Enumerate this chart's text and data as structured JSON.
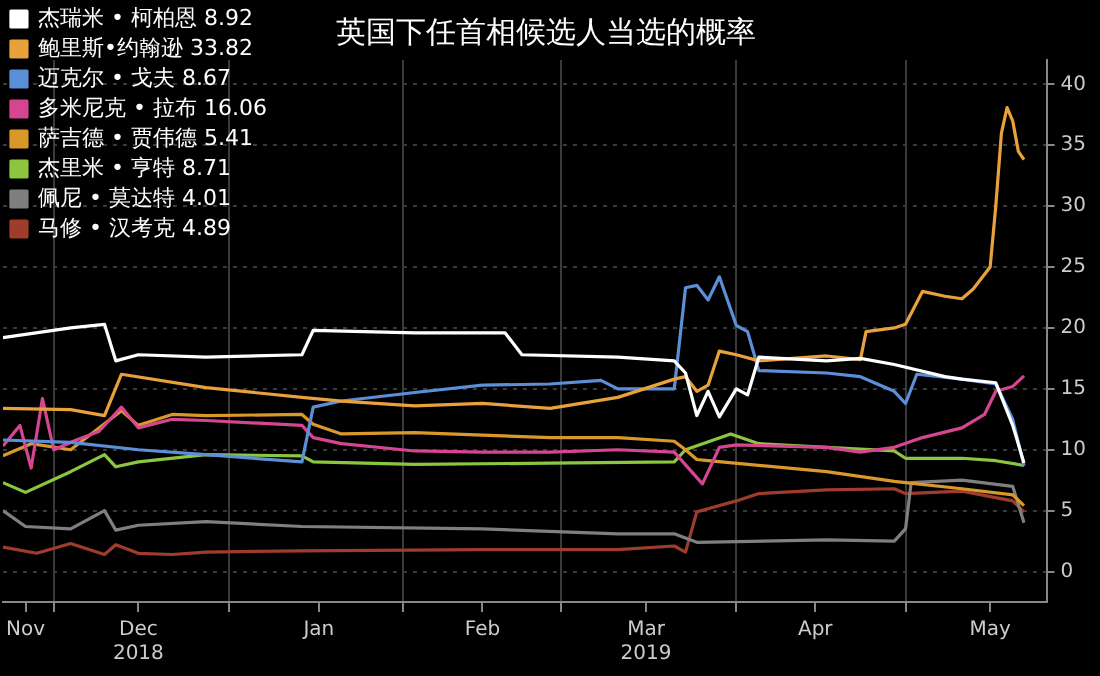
{
  "chart_data": {
    "type": "line",
    "title": "英国下任首相候选人当选的概率",
    "xlim": [
      "2018-11-22",
      "2019-05-26"
    ],
    "xticks": [
      {
        "value": "2018-11-26",
        "label": "Nov"
      },
      {
        "value": "2018-12-01",
        "label": null
      },
      {
        "value": "2018-12-16",
        "label": "Dec\n2018"
      },
      {
        "value": "2019-01-01",
        "label": null
      },
      {
        "value": "2019-01-17",
        "label": "Jan"
      },
      {
        "value": "2019-02-01",
        "label": null
      },
      {
        "value": "2019-02-15",
        "label": "Feb"
      },
      {
        "value": "2019-03-01",
        "label": null
      },
      {
        "value": "2019-03-16",
        "label": "Mar\n2019"
      },
      {
        "value": "2019-04-01",
        "label": null
      },
      {
        "value": "2019-04-15",
        "label": "Apr"
      },
      {
        "value": "2019-05-01",
        "label": null
      },
      {
        "value": "2019-05-16",
        "label": "May"
      }
    ],
    "ylim": [
      -2.5,
      42
    ],
    "yticks": [
      0,
      5,
      10,
      15,
      20,
      25,
      30,
      35,
      40
    ],
    "grid": true,
    "legend": "top left",
    "marker": "none",
    "line_style": "solid",
    "series": [
      {
        "name": "杰瑞米 • 柯柏恩 8.92",
        "color": "#ffffff",
        "x": [
          "2018-11-22",
          "2018-12-04",
          "2018-12-10",
          "2018-12-12",
          "2018-12-16",
          "2018-12-28",
          "2019-01-14",
          "2019-01-16",
          "2019-02-03",
          "2019-02-19",
          "2019-02-22",
          "2019-03-11",
          "2019-03-21",
          "2019-03-23",
          "2019-03-25",
          "2019-03-27",
          "2019-03-29",
          "2019-04-01",
          "2019-04-03",
          "2019-04-05",
          "2019-04-17",
          "2019-04-23",
          "2019-04-29",
          "2019-05-08",
          "2019-05-11",
          "2019-05-17",
          "2019-05-20",
          "2019-05-22"
        ],
        "values": [
          19.2,
          20.0,
          20.3,
          17.3,
          17.8,
          17.6,
          17.8,
          19.8,
          19.6,
          19.6,
          17.8,
          17.6,
          17.3,
          16.3,
          12.8,
          14.8,
          12.7,
          15.0,
          14.5,
          17.6,
          17.3,
          17.5,
          17.0,
          16.0,
          15.8,
          15.5,
          12.0,
          8.92
        ]
      },
      {
        "name": "鲍里斯•约翰逊 33.82",
        "color": "#e9a23b",
        "x": [
          "2018-11-22",
          "2018-12-04",
          "2018-12-10",
          "2018-12-13",
          "2018-12-28",
          "2019-01-14",
          "2019-01-21",
          "2019-02-03",
          "2019-02-15",
          "2019-02-27",
          "2019-03-11",
          "2019-03-21",
          "2019-03-23",
          "2019-03-25",
          "2019-03-27",
          "2019-03-29",
          "2019-04-01",
          "2019-04-05",
          "2019-04-17",
          "2019-04-23",
          "2019-04-24",
          "2019-04-29",
          "2019-05-01",
          "2019-05-04",
          "2019-05-08",
          "2019-05-11",
          "2019-05-13",
          "2019-05-16",
          "2019-05-17",
          "2019-05-18",
          "2019-05-19",
          "2019-05-20",
          "2019-05-21",
          "2019-05-22"
        ],
        "values": [
          13.4,
          13.3,
          12.8,
          16.2,
          15.1,
          14.3,
          14.0,
          13.6,
          13.8,
          13.4,
          14.3,
          15.8,
          16.0,
          14.8,
          15.3,
          18.1,
          17.8,
          17.3,
          17.7,
          17.4,
          19.7,
          20.0,
          20.3,
          23.0,
          22.6,
          22.4,
          23.2,
          25.0,
          30.0,
          36.0,
          38.1,
          37.0,
          34.5,
          33.82
        ]
      },
      {
        "name": "迈克尔 • 戈夫 8.67",
        "color": "#5b8fd8",
        "x": [
          "2018-11-22",
          "2018-12-04",
          "2018-12-16",
          "2018-12-28",
          "2019-01-14",
          "2019-01-16",
          "2019-01-21",
          "2019-02-03",
          "2019-02-15",
          "2019-02-27",
          "2019-03-08",
          "2019-03-11",
          "2019-03-21",
          "2019-03-23",
          "2019-03-25",
          "2019-03-27",
          "2019-03-29",
          "2019-04-01",
          "2019-04-03",
          "2019-04-05",
          "2019-04-17",
          "2019-04-23",
          "2019-04-29",
          "2019-05-01",
          "2019-05-03",
          "2019-05-11",
          "2019-05-17",
          "2019-05-20",
          "2019-05-22"
        ],
        "values": [
          10.8,
          10.6,
          10.0,
          9.6,
          9.0,
          13.5,
          14.0,
          14.7,
          15.3,
          15.4,
          15.7,
          15.0,
          15.0,
          23.3,
          23.5,
          22.3,
          24.2,
          20.2,
          19.7,
          16.5,
          16.3,
          16.0,
          14.8,
          13.8,
          16.2,
          15.8,
          15.4,
          12.5,
          8.67
        ]
      },
      {
        "name": "多米尼克 • 拉布 16.06",
        "color": "#d6458f",
        "x": [
          "2018-11-22",
          "2018-11-25",
          "2018-11-27",
          "2018-11-29",
          "2018-12-01",
          "2018-12-05",
          "2018-12-09",
          "2018-12-13",
          "2018-12-16",
          "2018-12-22",
          "2018-12-28",
          "2019-01-14",
          "2019-01-16",
          "2019-01-21",
          "2019-02-03",
          "2019-02-15",
          "2019-02-27",
          "2019-03-11",
          "2019-03-21",
          "2019-03-26",
          "2019-03-29",
          "2019-04-01",
          "2019-04-17",
          "2019-04-23",
          "2019-04-29",
          "2019-05-04",
          "2019-05-11",
          "2019-05-15",
          "2019-05-17",
          "2019-05-20",
          "2019-05-22"
        ],
        "values": [
          10.3,
          12.0,
          8.5,
          14.2,
          10.0,
          10.8,
          11.5,
          13.5,
          11.8,
          12.5,
          12.4,
          12.0,
          11.0,
          10.5,
          9.9,
          9.8,
          9.8,
          10.0,
          9.8,
          7.2,
          10.2,
          10.4,
          10.2,
          9.8,
          10.2,
          11.0,
          11.8,
          12.9,
          14.8,
          15.2,
          16.06
        ]
      },
      {
        "name": "萨吉德 • 贾伟德 5.41",
        "color": "#d9982a",
        "x": [
          "2018-11-22",
          "2018-11-27",
          "2018-12-04",
          "2018-12-13",
          "2018-12-16",
          "2018-12-22",
          "2018-12-28",
          "2019-01-14",
          "2019-01-16",
          "2019-01-21",
          "2019-02-03",
          "2019-02-15",
          "2019-02-27",
          "2019-03-11",
          "2019-03-21",
          "2019-03-23",
          "2019-03-25",
          "2019-03-27",
          "2019-04-17",
          "2019-04-29",
          "2019-05-11",
          "2019-05-20",
          "2019-05-22"
        ],
        "values": [
          9.5,
          10.5,
          10.0,
          13.2,
          12.0,
          12.9,
          12.8,
          12.9,
          12.1,
          11.3,
          11.4,
          11.2,
          11.0,
          11.0,
          10.7,
          10.0,
          9.2,
          9.1,
          8.2,
          7.4,
          6.8,
          6.3,
          5.41
        ]
      },
      {
        "name": "杰里米 • 亨特 8.71",
        "color": "#8cc63e",
        "x": [
          "2018-11-22",
          "2018-11-26",
          "2018-12-04",
          "2018-12-10",
          "2018-12-12",
          "2018-12-16",
          "2018-12-28",
          "2019-01-14",
          "2019-01-16",
          "2019-02-03",
          "2019-02-27",
          "2019-03-21",
          "2019-03-23",
          "2019-03-31",
          "2019-04-05",
          "2019-04-17",
          "2019-04-29",
          "2019-05-01",
          "2019-05-11",
          "2019-05-17",
          "2019-05-22"
        ],
        "values": [
          7.3,
          6.5,
          8.2,
          9.6,
          8.6,
          9.0,
          9.6,
          9.5,
          9.0,
          8.8,
          8.9,
          9.0,
          10.0,
          11.3,
          10.5,
          10.2,
          9.9,
          9.3,
          9.3,
          9.1,
          8.71
        ]
      },
      {
        "name": "佩尼 • 莫达特 4.01",
        "color": "#7f7f7f",
        "x": [
          "2018-11-22",
          "2018-11-26",
          "2018-12-04",
          "2018-12-10",
          "2018-12-12",
          "2018-12-16",
          "2018-12-28",
          "2019-01-14",
          "2019-02-15",
          "2019-03-11",
          "2019-03-21",
          "2019-03-25",
          "2019-04-17",
          "2019-04-29",
          "2019-05-01",
          "2019-05-02",
          "2019-05-11",
          "2019-05-20",
          "2019-05-22"
        ],
        "values": [
          5.0,
          3.7,
          3.5,
          5.0,
          3.4,
          3.8,
          4.1,
          3.7,
          3.5,
          3.1,
          3.1,
          2.4,
          2.6,
          2.5,
          3.5,
          7.3,
          7.5,
          7.0,
          4.01
        ]
      },
      {
        "name": "马修 • 汉考克 4.89",
        "color": "#a03c2c",
        "x": [
          "2018-11-22",
          "2018-11-28",
          "2018-12-04",
          "2018-12-10",
          "2018-12-12",
          "2018-12-16",
          "2018-12-22",
          "2018-12-28",
          "2019-01-14",
          "2019-02-15",
          "2019-03-11",
          "2019-03-21",
          "2019-03-23",
          "2019-03-25",
          "2019-04-01",
          "2019-04-05",
          "2019-04-17",
          "2019-04-29",
          "2019-05-01",
          "2019-05-11",
          "2019-05-20",
          "2019-05-22"
        ],
        "values": [
          2.0,
          1.5,
          2.3,
          1.4,
          2.2,
          1.5,
          1.4,
          1.6,
          1.7,
          1.8,
          1.8,
          2.1,
          1.6,
          4.9,
          5.8,
          6.4,
          6.7,
          6.8,
          6.4,
          6.6,
          5.8,
          4.89
        ]
      }
    ]
  }
}
